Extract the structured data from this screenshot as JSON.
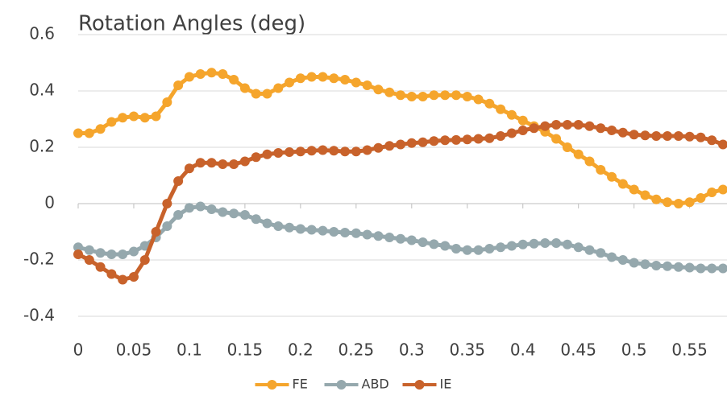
{
  "chart_data": {
    "type": "line",
    "title": "Rotation Angles (deg)",
    "x": [
      0,
      0.01,
      0.02,
      0.03,
      0.04,
      0.05,
      0.06,
      0.07,
      0.08,
      0.09,
      0.1,
      0.11,
      0.12,
      0.13,
      0.14,
      0.15,
      0.16,
      0.17,
      0.18,
      0.19,
      0.2,
      0.21,
      0.22,
      0.23,
      0.24,
      0.25,
      0.26,
      0.27,
      0.28,
      0.29,
      0.3,
      0.31,
      0.32,
      0.33,
      0.34,
      0.35,
      0.36,
      0.37,
      0.38,
      0.39,
      0.4,
      0.41,
      0.42,
      0.43,
      0.44,
      0.45,
      0.46,
      0.47,
      0.48,
      0.49,
      0.5,
      0.51,
      0.52,
      0.53,
      0.54,
      0.55,
      0.56,
      0.57,
      0.58
    ],
    "series": [
      {
        "name": "FE",
        "color": "#f5a52c",
        "values": [
          0.25,
          0.25,
          0.265,
          0.29,
          0.305,
          0.31,
          0.305,
          0.31,
          0.36,
          0.42,
          0.45,
          0.46,
          0.465,
          0.46,
          0.44,
          0.41,
          0.39,
          0.39,
          0.41,
          0.43,
          0.445,
          0.45,
          0.45,
          0.445,
          0.44,
          0.43,
          0.42,
          0.405,
          0.395,
          0.385,
          0.38,
          0.38,
          0.385,
          0.385,
          0.385,
          0.38,
          0.37,
          0.355,
          0.335,
          0.315,
          0.295,
          0.275,
          0.255,
          0.23,
          0.2,
          0.175,
          0.15,
          0.12,
          0.095,
          0.07,
          0.05,
          0.03,
          0.015,
          0.005,
          0.0,
          0.005,
          0.02,
          0.04,
          0.05
        ]
      },
      {
        "name": "ABD",
        "color": "#95a8ad",
        "values": [
          -0.155,
          -0.165,
          -0.175,
          -0.18,
          -0.18,
          -0.17,
          -0.15,
          -0.12,
          -0.08,
          -0.04,
          -0.015,
          -0.01,
          -0.02,
          -0.03,
          -0.035,
          -0.04,
          -0.055,
          -0.07,
          -0.08,
          -0.085,
          -0.09,
          -0.093,
          -0.096,
          -0.1,
          -0.103,
          -0.105,
          -0.11,
          -0.115,
          -0.12,
          -0.125,
          -0.13,
          -0.137,
          -0.144,
          -0.15,
          -0.16,
          -0.165,
          -0.165,
          -0.16,
          -0.155,
          -0.15,
          -0.145,
          -0.142,
          -0.14,
          -0.14,
          -0.145,
          -0.155,
          -0.165,
          -0.175,
          -0.19,
          -0.2,
          -0.21,
          -0.215,
          -0.22,
          -0.222,
          -0.225,
          -0.227,
          -0.23,
          -0.23,
          -0.23
        ]
      },
      {
        "name": "IE",
        "color": "#c8622b",
        "values": [
          -0.18,
          -0.2,
          -0.225,
          -0.25,
          -0.27,
          -0.26,
          -0.2,
          -0.1,
          0.0,
          0.08,
          0.125,
          0.145,
          0.145,
          0.14,
          0.14,
          0.15,
          0.165,
          0.175,
          0.18,
          0.183,
          0.185,
          0.188,
          0.19,
          0.188,
          0.185,
          0.185,
          0.19,
          0.198,
          0.205,
          0.21,
          0.215,
          0.218,
          0.222,
          0.225,
          0.226,
          0.228,
          0.23,
          0.232,
          0.24,
          0.25,
          0.26,
          0.268,
          0.275,
          0.28,
          0.28,
          0.28,
          0.275,
          0.268,
          0.26,
          0.252,
          0.245,
          0.242,
          0.24,
          0.24,
          0.24,
          0.238,
          0.235,
          0.225,
          0.21
        ]
      }
    ],
    "xlim": [
      0,
      0.58
    ],
    "xticks": [
      0,
      0.05,
      0.1,
      0.15,
      0.2,
      0.25,
      0.3,
      0.35,
      0.4,
      0.45,
      0.5,
      0.55
    ],
    "ylim": [
      -0.4,
      0.6
    ],
    "yticks": [
      -0.4,
      -0.2,
      0,
      0.2,
      0.4,
      0.6
    ],
    "grid": true,
    "legend": "bottom"
  }
}
